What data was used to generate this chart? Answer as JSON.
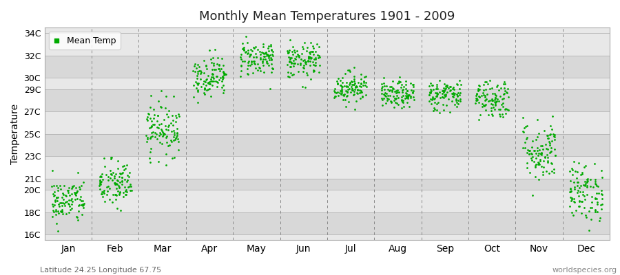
{
  "title": "Monthly Mean Temperatures 1901 - 2009",
  "ylabel": "Temperature",
  "xlabel_months": [
    "Jan",
    "Feb",
    "Mar",
    "Apr",
    "May",
    "Jun",
    "Jul",
    "Aug",
    "Sep",
    "Oct",
    "Nov",
    "Dec"
  ],
  "ytick_labels": [
    "16C",
    "18C",
    "20C",
    "21C",
    "23C",
    "25C",
    "27C",
    "29C",
    "30C",
    "32C",
    "34C"
  ],
  "ytick_values": [
    16,
    18,
    20,
    21,
    23,
    25,
    27,
    29,
    30,
    32,
    34
  ],
  "ylim": [
    15.5,
    34.5
  ],
  "dot_color": "#00aa00",
  "bg_color": "#e0e0e0",
  "band_light": "#e8e8e8",
  "band_dark": "#d8d8d8",
  "legend_label": "Mean Temp",
  "footer_left": "Latitude 24.25 Longitude 67.75",
  "footer_right": "worldspecies.org",
  "mean_temps": [
    19.0,
    20.5,
    25.5,
    30.2,
    31.8,
    31.5,
    29.2,
    28.5,
    28.5,
    28.2,
    23.5,
    19.8
  ],
  "std_temps": [
    1.0,
    1.1,
    1.2,
    0.9,
    0.8,
    0.8,
    0.7,
    0.6,
    0.7,
    0.9,
    1.4,
    1.3
  ],
  "n_years": 109,
  "seed": 42,
  "dot_size": 4,
  "title_fontsize": 13,
  "axis_fontsize": 9,
  "month_label_fontsize": 10
}
